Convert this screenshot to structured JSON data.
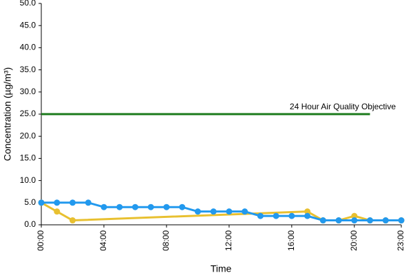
{
  "chart_data": {
    "type": "line",
    "xlabel": "Time",
    "ylabel": "Concentration (µg/m³)",
    "xlim": [
      0,
      23
    ],
    "ylim": [
      0,
      50
    ],
    "xticks": [
      {
        "value": 0,
        "label": "00:00"
      },
      {
        "value": 4,
        "label": "04:00"
      },
      {
        "value": 8,
        "label": "08:00"
      },
      {
        "value": 12,
        "label": "12:00"
      },
      {
        "value": 16,
        "label": "16:00"
      },
      {
        "value": 20,
        "label": "20:00"
      },
      {
        "value": 23,
        "label": "23:00"
      }
    ],
    "yticks": [
      {
        "value": 0,
        "label": "0.0"
      },
      {
        "value": 5,
        "label": "5.0"
      },
      {
        "value": 10,
        "label": "10.0"
      },
      {
        "value": 15,
        "label": "15.0"
      },
      {
        "value": 20,
        "label": "20.0"
      },
      {
        "value": 25,
        "label": "25.0"
      },
      {
        "value": 30,
        "label": "30.0"
      },
      {
        "value": 35,
        "label": "35.0"
      },
      {
        "value": 40,
        "label": "40.0"
      },
      {
        "value": 45,
        "label": "45.0"
      },
      {
        "value": 50,
        "label": "50.0"
      }
    ],
    "reference_line": {
      "value": 25,
      "x": [
        0,
        21
      ],
      "label": "24 Hour Air Quality Objective",
      "color": "#1b7a1b"
    },
    "series": [
      {
        "color": "#e8c030",
        "x": [
          0,
          1,
          2,
          17,
          18,
          19,
          20,
          21,
          22,
          23
        ],
        "values": [
          5,
          3,
          1,
          3,
          1,
          1,
          2,
          1,
          1,
          1
        ]
      },
      {
        "color": "#2299ee",
        "x": [
          0,
          1,
          2,
          3,
          4,
          5,
          6,
          7,
          8,
          9,
          10,
          11,
          12,
          13,
          14,
          15,
          16,
          17,
          18,
          19,
          20,
          21,
          22,
          23
        ],
        "values": [
          5,
          5,
          5,
          5,
          4,
          4,
          4,
          4,
          4,
          4,
          3,
          3,
          3,
          3,
          2,
          2,
          2,
          2,
          1,
          1,
          1,
          1,
          1,
          1
        ]
      }
    ]
  }
}
